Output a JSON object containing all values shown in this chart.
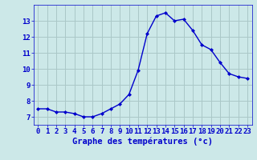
{
  "hours": [
    0,
    1,
    2,
    3,
    4,
    5,
    6,
    7,
    8,
    9,
    10,
    11,
    12,
    13,
    14,
    15,
    16,
    17,
    18,
    19,
    20,
    21,
    22,
    23
  ],
  "temperatures": [
    7.5,
    7.5,
    7.3,
    7.3,
    7.2,
    7.0,
    7.0,
    7.2,
    7.5,
    7.8,
    8.4,
    9.9,
    12.2,
    13.3,
    13.5,
    13.0,
    13.1,
    12.4,
    11.5,
    11.2,
    10.4,
    9.7,
    9.5,
    9.4
  ],
  "line_color": "#0000cc",
  "marker": "D",
  "marker_size": 2.0,
  "bg_color": "#cce8e8",
  "grid_color": "#aac8c8",
  "xlabel": "Graphe des températures (°c)",
  "ylim": [
    6.5,
    14.0
  ],
  "yticks": [
    7,
    8,
    9,
    10,
    11,
    12,
    13
  ],
  "xlim": [
    -0.5,
    23.5
  ],
  "tick_fontsize": 6.5,
  "xlabel_fontsize": 7.5,
  "label_color": "#0000cc",
  "linewidth": 1.0
}
